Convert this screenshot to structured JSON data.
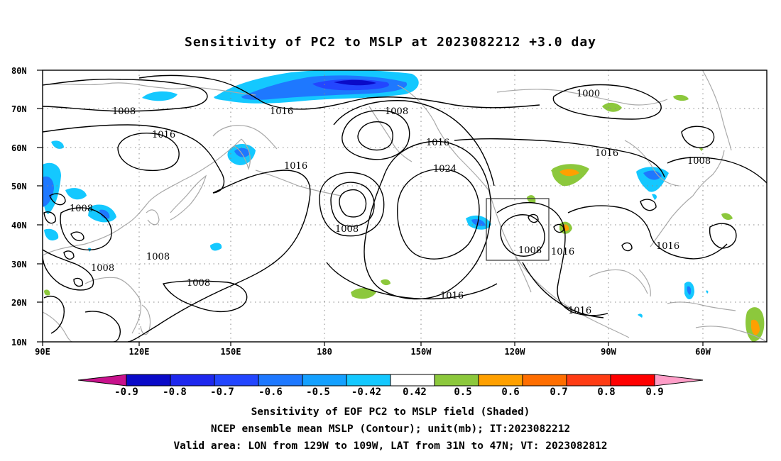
{
  "title": "Sensitivity of PC2 to MSLP at 2023082212 +3.0 day",
  "lat_labels": [
    "80N",
    "70N",
    "60N",
    "50N",
    "40N",
    "30N",
    "20N",
    "10N"
  ],
  "lon_labels": [
    "90E",
    "120E",
    "150E",
    "180",
    "150W",
    "120W",
    "90W",
    "60W"
  ],
  "contour_labels": [
    "1008",
    "1016",
    "1016",
    "1008",
    "1016",
    "1016",
    "1024",
    "1000",
    "1016",
    "1008",
    "1008",
    "1008",
    "1008",
    "1008",
    "1008",
    "1008",
    "1016",
    "1016",
    "1016",
    "1016"
  ],
  "colorbar": {
    "labels": [
      "-0.9",
      "-0.8",
      "-0.7",
      "-0.6",
      "-0.5",
      "-0.42",
      "0.42",
      "0.5",
      "0.6",
      "0.7",
      "0.8",
      "0.9"
    ],
    "colors": [
      "#0a0ac8",
      "#1e28ee",
      "#2346ff",
      "#1e78ff",
      "#14a0ff",
      "#14c8ff",
      "#ffffff",
      "#8cc83c",
      "#ffa000",
      "#ff6e00",
      "#ff3c14",
      "#ff0000"
    ],
    "below_color": "#c8128c",
    "above_color": "#ff9ec8"
  },
  "footer": {
    "line1": "Sensitivity of EOF PC2 to MSLP field (Shaded)",
    "line2": "NCEP ensemble mean MSLP (Contour); unit(mb); IT:2023082212",
    "line3": "Valid area: LON from 129W to 109W, LAT from 31N to 47N; VT: 2023082812"
  }
}
